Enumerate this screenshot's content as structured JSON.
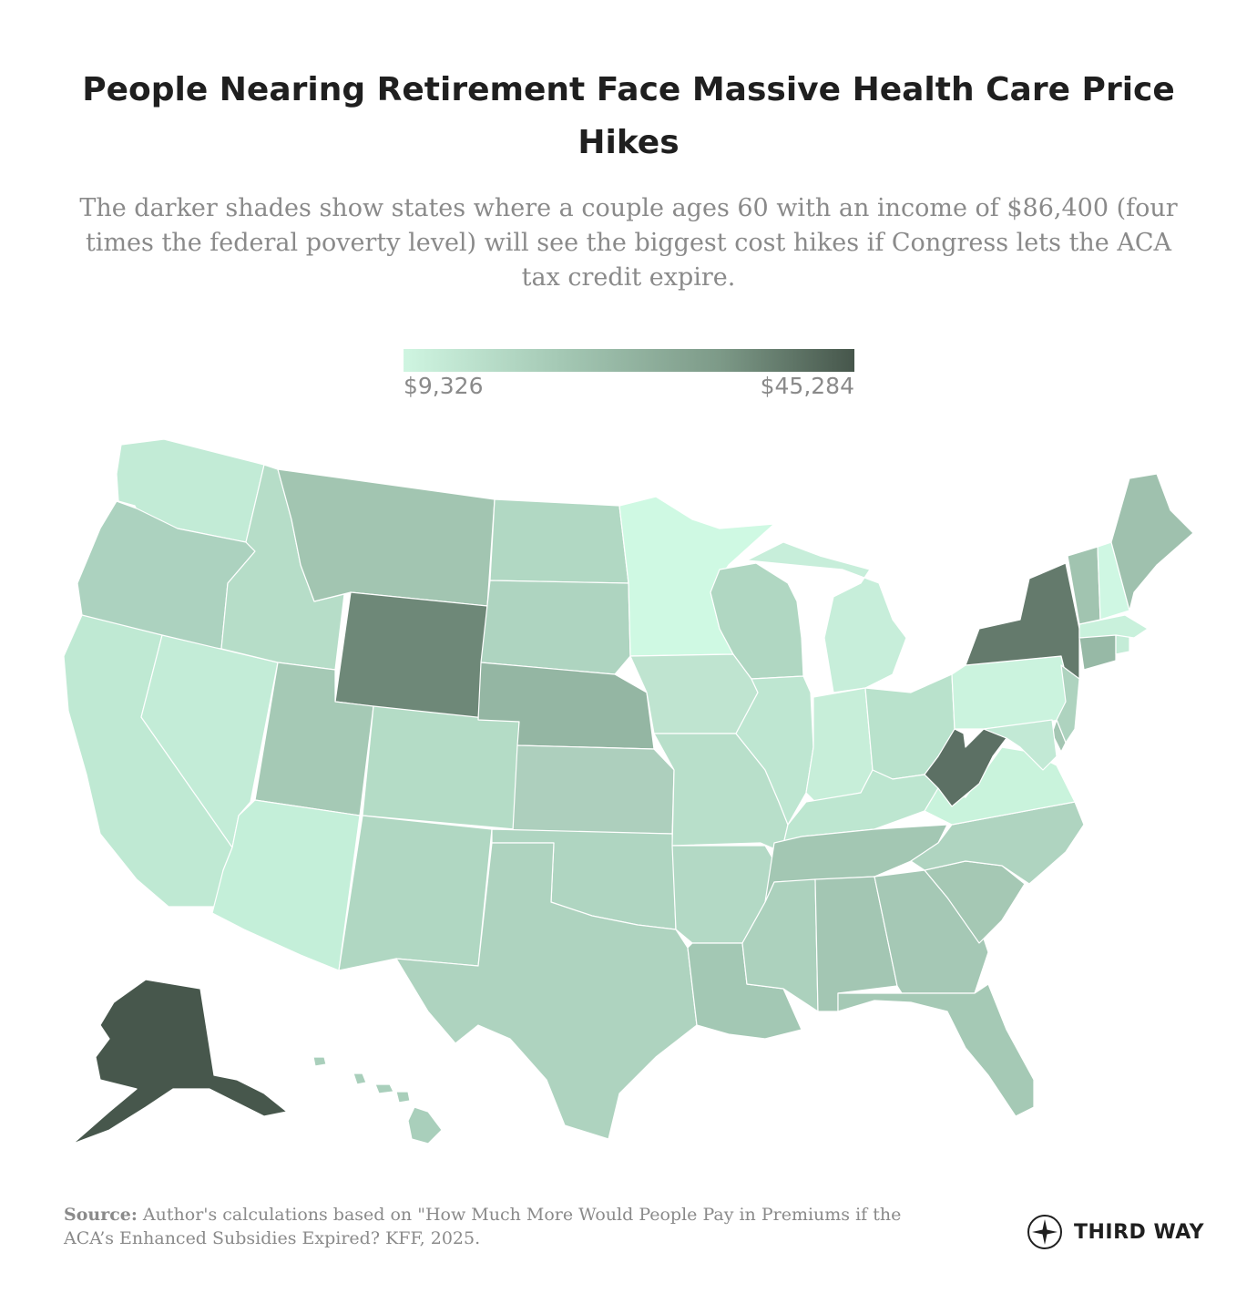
{
  "title": "People Nearing Retirement Face Massive Health Care Price Hikes",
  "subtitle": "The darker shades show states where a couple ages 60 with an income of $86,400 (four times the federal poverty level) will see the biggest cost hikes if Congress lets the ACA tax credit expire.",
  "legend": {
    "min_label": "$9,326",
    "max_label": "$45,284",
    "min_value": 9326,
    "max_value": 45284,
    "color_low": "#cff5e1",
    "color_high": "#46564b"
  },
  "map": {
    "states": [
      {
        "id": "WA",
        "color": "#c2ebd6"
      },
      {
        "id": "OR",
        "color": "#acd2bf"
      },
      {
        "id": "CA",
        "color": "#bfe9d3"
      },
      {
        "id": "NV",
        "color": "#c3ecd7"
      },
      {
        "id": "ID",
        "color": "#b6ddc8"
      },
      {
        "id": "MT",
        "color": "#a2c5b1"
      },
      {
        "id": "WY",
        "color": "#6e8878"
      },
      {
        "id": "UT",
        "color": "#a5c9b5"
      },
      {
        "id": "AZ",
        "color": "#c4efd9"
      },
      {
        "id": "CO",
        "color": "#b4dcc6"
      },
      {
        "id": "NM",
        "color": "#b0d7c2"
      },
      {
        "id": "ND",
        "color": "#b1d8c3"
      },
      {
        "id": "SD",
        "color": "#aed4c0"
      },
      {
        "id": "NE",
        "color": "#94b6a3"
      },
      {
        "id": "KS",
        "color": "#adcfbd"
      },
      {
        "id": "OK",
        "color": "#afd5c1"
      },
      {
        "id": "TX",
        "color": "#aed3bf"
      },
      {
        "id": "MN",
        "color": "#cff9e3"
      },
      {
        "id": "IA",
        "color": "#bfe4d0"
      },
      {
        "id": "MO",
        "color": "#b8dfca"
      },
      {
        "id": "AR",
        "color": "#b3d9c5"
      },
      {
        "id": "LA",
        "color": "#a3c8b4"
      },
      {
        "id": "WI",
        "color": "#b0d7c2"
      },
      {
        "id": "IL",
        "color": "#bee6d1"
      },
      {
        "id": "MI",
        "color": "#c7eeda"
      },
      {
        "id": "IN",
        "color": "#c7eed9"
      },
      {
        "id": "OH",
        "color": "#b9e2cc"
      },
      {
        "id": "KY",
        "color": "#bde6d0"
      },
      {
        "id": "TN",
        "color": "#a3c7b3"
      },
      {
        "id": "MS",
        "color": "#acd1bd"
      },
      {
        "id": "AL",
        "color": "#a3c6b3"
      },
      {
        "id": "GA",
        "color": "#a5c8b5"
      },
      {
        "id": "FL",
        "color": "#a5c9b5"
      },
      {
        "id": "SC",
        "color": "#a5c8b4"
      },
      {
        "id": "NC",
        "color": "#afd4c0"
      },
      {
        "id": "VA",
        "color": "#c9f3dc"
      },
      {
        "id": "WV",
        "color": "#5c7064"
      },
      {
        "id": "PA",
        "color": "#cbf3de"
      },
      {
        "id": "NY",
        "color": "#647a6c"
      },
      {
        "id": "VT",
        "color": "#a1c4b0"
      },
      {
        "id": "NH",
        "color": "#cff7e3"
      },
      {
        "id": "ME",
        "color": "#9fc1ae"
      },
      {
        "id": "MA",
        "color": "#c9f1dc"
      },
      {
        "id": "CT",
        "color": "#97b9a6"
      },
      {
        "id": "RI",
        "color": "#c4ecd7"
      },
      {
        "id": "NJ",
        "color": "#aed3bf"
      },
      {
        "id": "DE",
        "color": "#a4c6b3"
      },
      {
        "id": "MD",
        "color": "#c2e9d5"
      },
      {
        "id": "AK",
        "color": "#47574c"
      },
      {
        "id": "HI",
        "color": "#a9cfbb"
      }
    ]
  },
  "source": {
    "label": "Source:",
    "text": " Author's calculations based on \"How Much More Would People Pay in Premiums if the ACA’s Enhanced Subsidies Expired? KFF, 2025."
  },
  "logo": {
    "text": "THIRD WAY",
    "icon": "compass-icon"
  }
}
